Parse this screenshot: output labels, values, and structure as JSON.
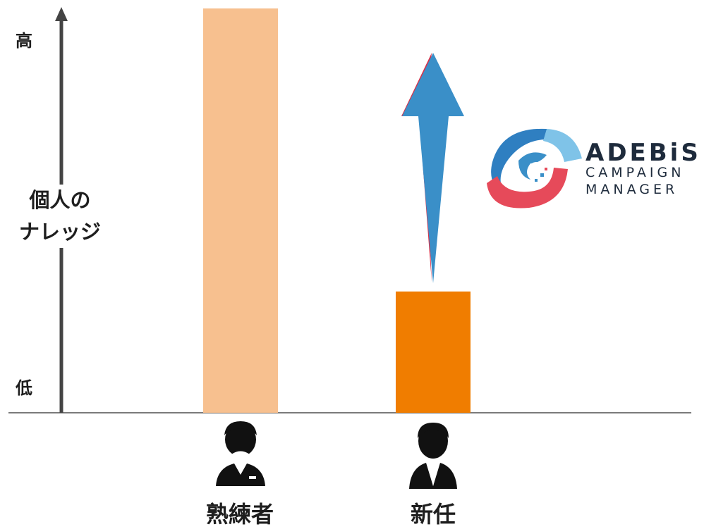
{
  "y_axis": {
    "top_label": "高",
    "bottom_label": "低",
    "title_line1": "個人の",
    "title_line2": "ナレッジ"
  },
  "chart_data": {
    "type": "bar",
    "categories": [
      "熟練者",
      "新任"
    ],
    "values": [
      100,
      30
    ],
    "colors": [
      "#f7c08f",
      "#f07d00"
    ],
    "annotation": "upward arrow above 新任 bar indicating increase"
  },
  "logo": {
    "line1": "ADEBiS",
    "line2": "CAMPAIGN",
    "line3": "MANAGER"
  },
  "icons": [
    "expert-person-icon",
    "newcomer-person-icon",
    "upward-arrow-icon",
    "adebis-logo-icon"
  ]
}
